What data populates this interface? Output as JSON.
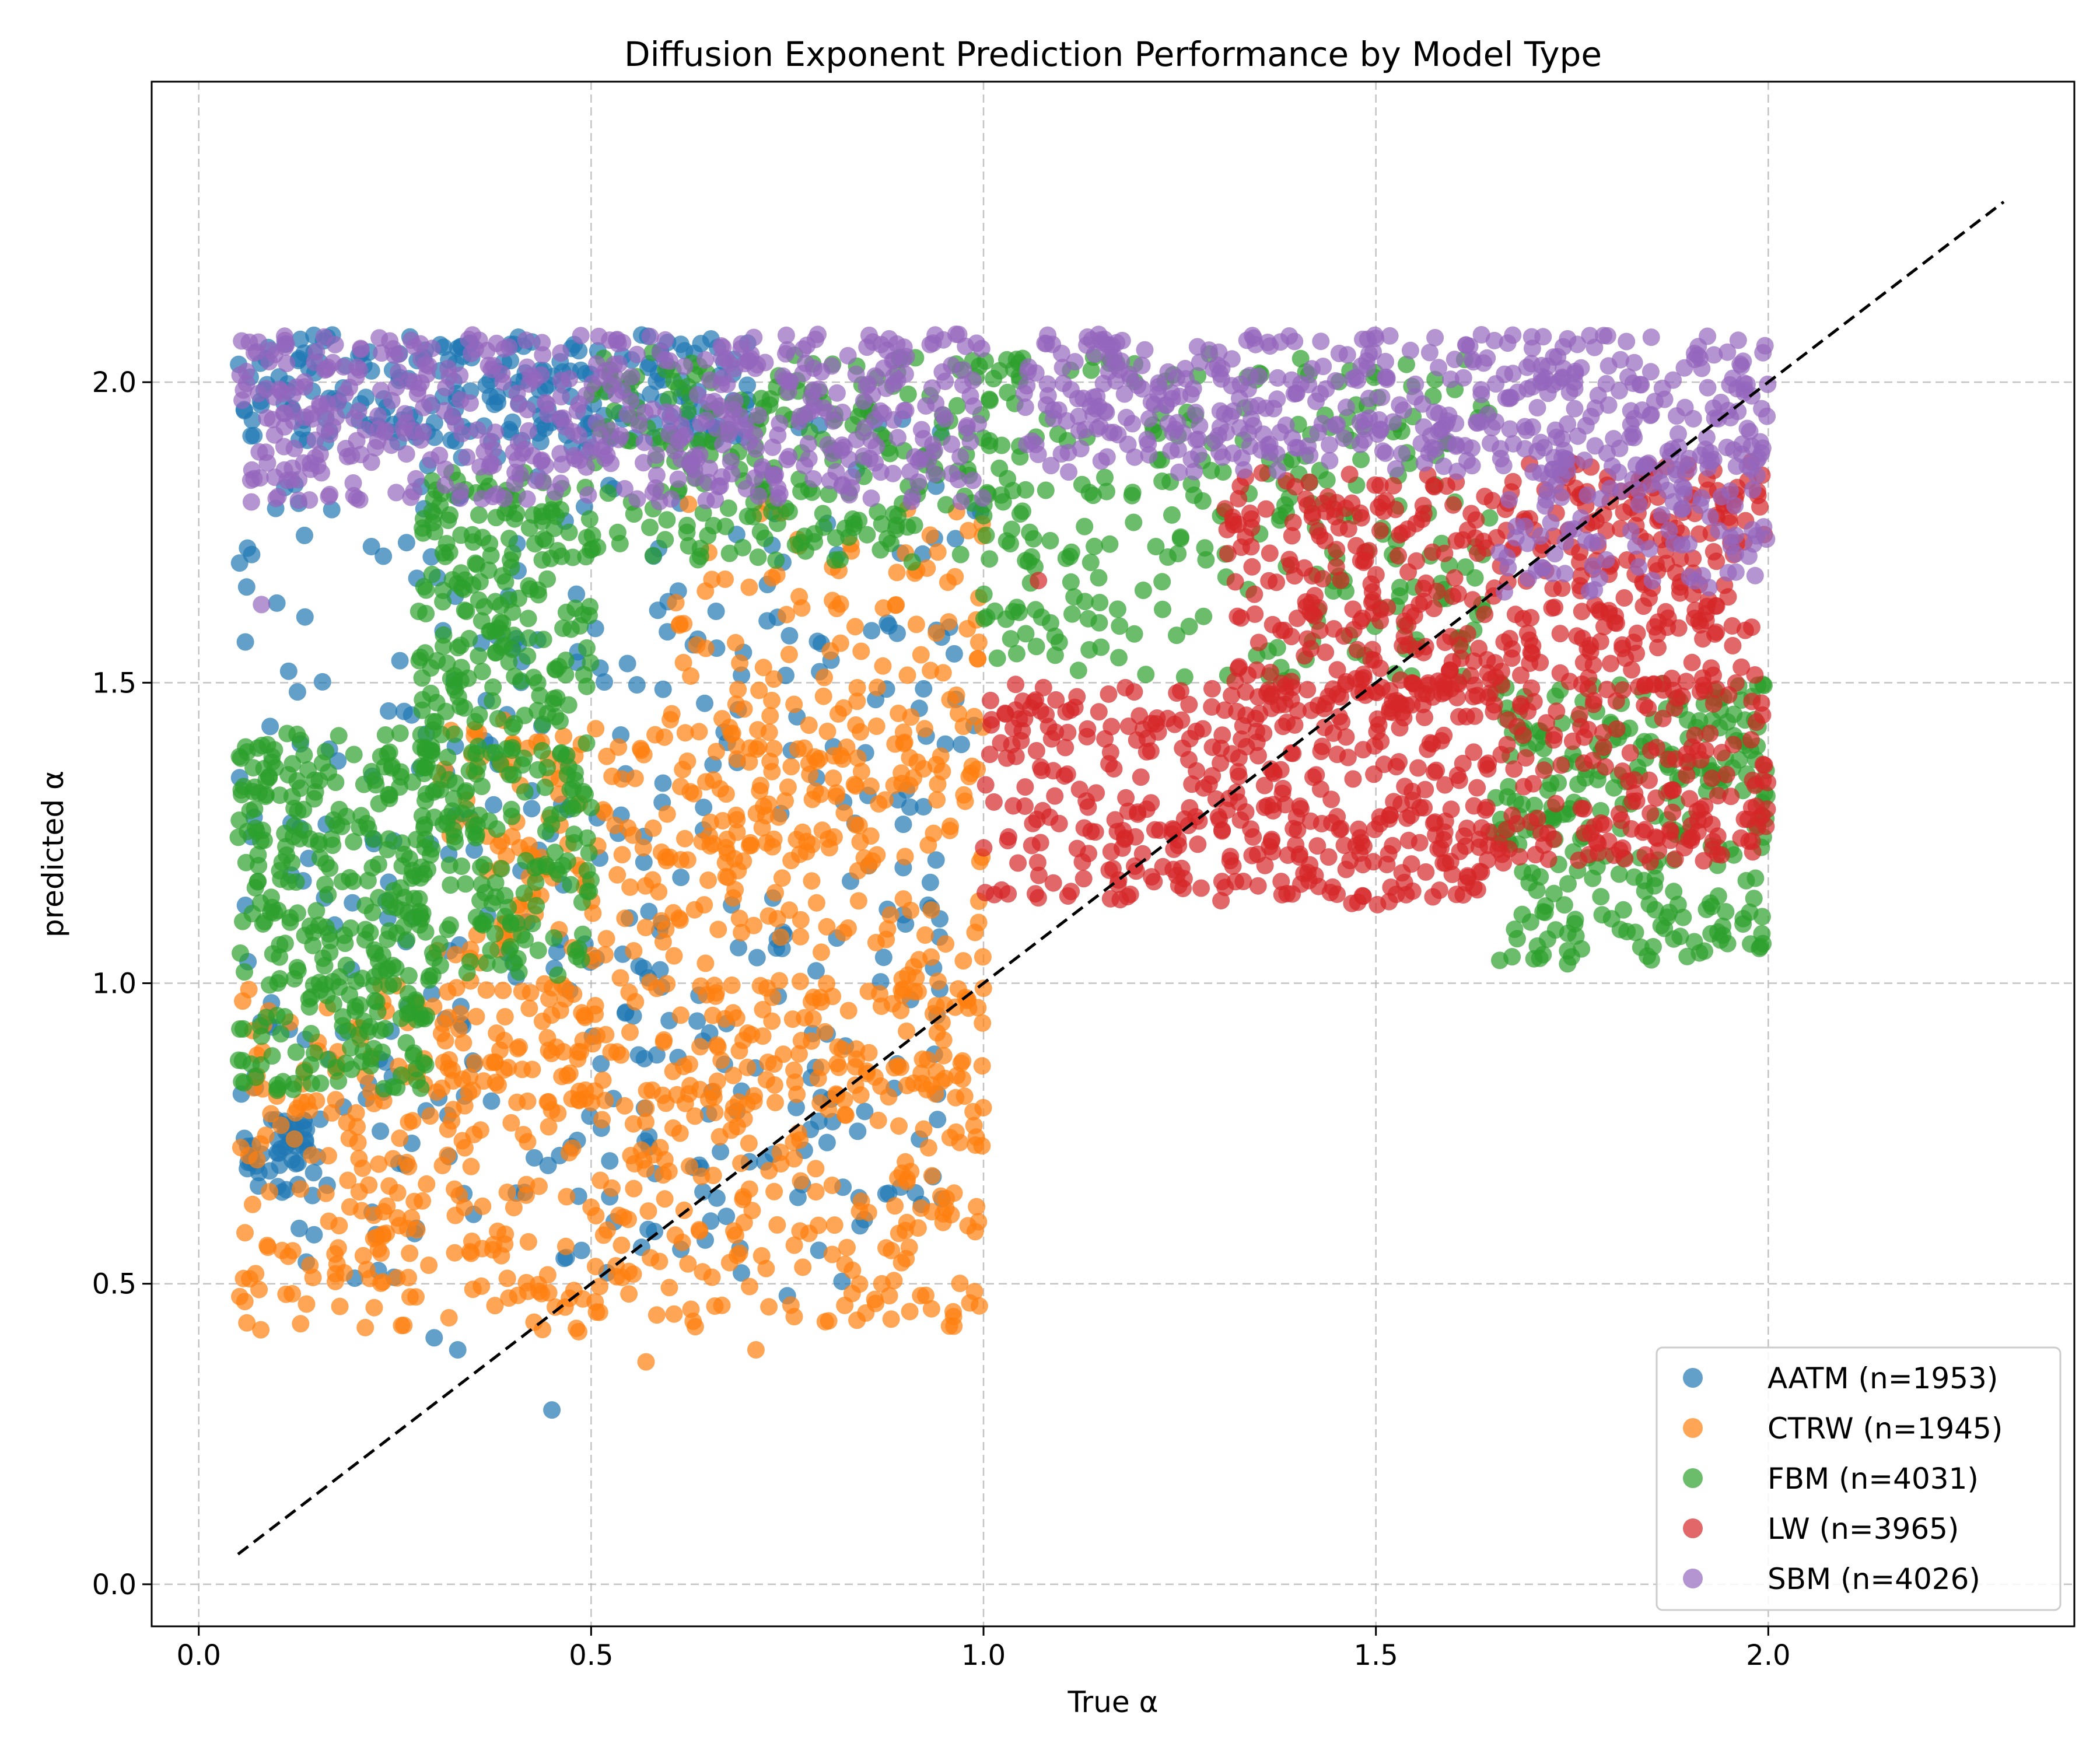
{
  "chart_data": {
    "type": "scatter",
    "title": "Diffusion Exponent Prediction Performance by Model Type",
    "xlabel": "True α",
    "ylabel": "predicted α",
    "xlim": [
      -0.06,
      2.39
    ],
    "ylim": [
      -0.07,
      2.5
    ],
    "xticks": [
      "0.0",
      "0.5",
      "1.0",
      "1.5",
      "2.0"
    ],
    "yticks": [
      "0.0",
      "0.5",
      "1.0",
      "1.5",
      "2.0"
    ],
    "xtick_values": [
      0.0,
      0.5,
      1.0,
      1.5,
      2.0
    ],
    "ytick_values": [
      0.0,
      0.5,
      1.0,
      1.5,
      2.0
    ],
    "grid": true,
    "legend_position": "lower right",
    "reference_line": {
      "style": "dashed",
      "color": "#000000",
      "points": [
        [
          0.05,
          0.05
        ],
        [
          2.3,
          2.3
        ]
      ]
    },
    "series": [
      {
        "name": "AATM (n=1953)",
        "color": "#1f77b4",
        "clusters": [
          {
            "x": [
              0.05,
              0.7
            ],
            "y": [
              1.9,
              2.08
            ],
            "count": 220
          },
          {
            "x": [
              0.05,
              1.0
            ],
            "y": [
              1.3,
              1.95
            ],
            "count": 170
          },
          {
            "x": [
              0.05,
              0.95
            ],
            "y": [
              0.5,
              1.3
            ],
            "count": 260
          },
          {
            "x": [
              0.05,
              0.15
            ],
            "y": [
              0.65,
              0.78
            ],
            "count": 40
          }
        ],
        "points": [
          {
            "x": 0.45,
            "y": 0.29
          },
          {
            "x": 0.3,
            "y": 0.41
          },
          {
            "x": 0.33,
            "y": 0.39
          },
          {
            "x": 0.75,
            "y": 0.48
          }
        ]
      },
      {
        "name": "CTRW (n=1945)",
        "color": "#ff7f0e",
        "clusters": [
          {
            "x": [
              0.05,
              1.0
            ],
            "y": [
              0.42,
              1.0
            ],
            "count": 520
          },
          {
            "x": [
              0.3,
              1.0
            ],
            "y": [
              0.8,
              1.45
            ],
            "count": 360
          },
          {
            "x": [
              0.6,
              1.0
            ],
            "y": [
              1.2,
              1.8
            ],
            "count": 170
          }
        ],
        "points": [
          {
            "x": 0.57,
            "y": 0.37
          },
          {
            "x": 0.71,
            "y": 0.39
          },
          {
            "x": 0.88,
            "y": 0.48
          }
        ]
      },
      {
        "name": "FBM (n=4031)",
        "color": "#2ca02c",
        "clusters": [
          {
            "x": [
              0.05,
              0.3
            ],
            "y": [
              0.82,
              1.42
            ],
            "count": 330
          },
          {
            "x": [
              0.28,
              0.5
            ],
            "y": [
              1.0,
              1.85
            ],
            "count": 360
          },
          {
            "x": [
              0.5,
              1.05
            ],
            "y": [
              1.7,
              2.05
            ],
            "count": 260
          },
          {
            "x": [
              1.0,
              1.65
            ],
            "y": [
              1.5,
              2.05
            ],
            "count": 260
          },
          {
            "x": [
              1.65,
              2.0
            ],
            "y": [
              1.03,
              1.5
            ],
            "count": 280
          }
        ],
        "points": []
      },
      {
        "name": "LW (n=3965)",
        "color": "#d62728",
        "clusters": [
          {
            "x": [
              1.0,
              1.65
            ],
            "y": [
              1.13,
              1.5
            ],
            "count": 430
          },
          {
            "x": [
              1.3,
              1.65
            ],
            "y": [
              1.45,
              1.85
            ],
            "count": 230
          },
          {
            "x": [
              1.65,
              2.0
            ],
            "y": [
              1.2,
              1.87
            ],
            "count": 420
          }
        ],
        "points": [
          {
            "x": 1.07,
            "y": 1.67
          }
        ]
      },
      {
        "name": "SBM (n=4026)",
        "color": "#9467bd",
        "clusters": [
          {
            "x": [
              0.05,
              1.0
            ],
            "y": [
              1.8,
              2.08
            ],
            "count": 520
          },
          {
            "x": [
              1.05,
              2.0
            ],
            "y": [
              1.85,
              2.08
            ],
            "count": 460
          },
          {
            "x": [
              1.65,
              2.0
            ],
            "y": [
              1.65,
              1.9
            ],
            "count": 110
          }
        ],
        "points": [
          {
            "x": 0.08,
            "y": 1.63
          }
        ]
      }
    ]
  }
}
